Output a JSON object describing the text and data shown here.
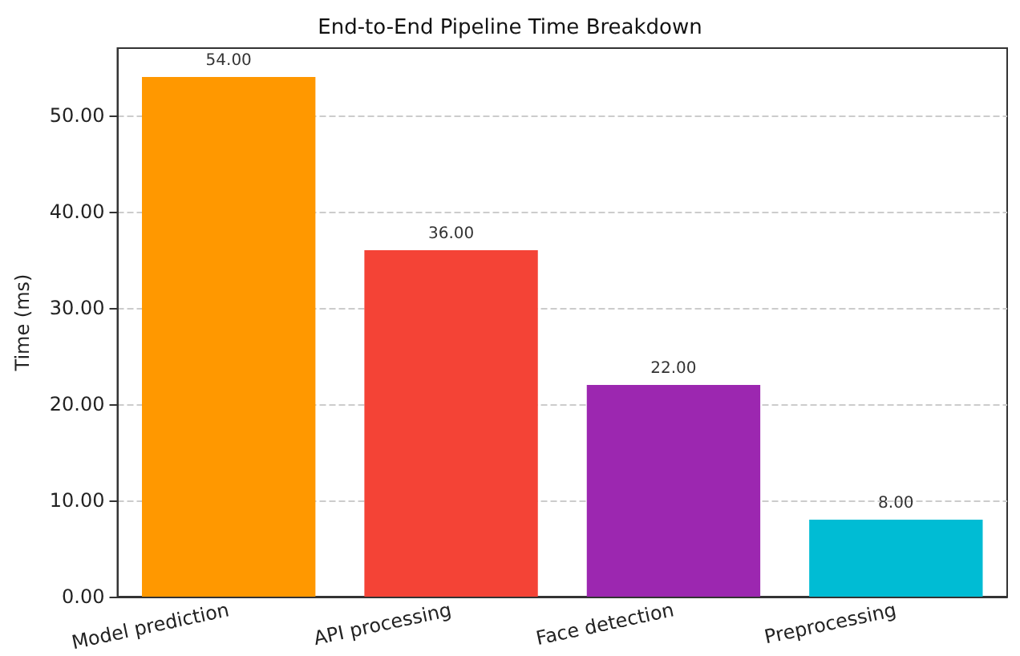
{
  "chart_data": {
    "type": "bar",
    "title": "End-to-End Pipeline Time Breakdown",
    "ylabel": "Time (ms)",
    "categories": [
      "Model prediction",
      "API processing",
      "Face detection",
      "Preprocessing"
    ],
    "values": [
      54,
      36,
      22,
      8
    ],
    "colors": [
      "#ff9800",
      "#f44336",
      "#9c27b0",
      "#00bcd4"
    ],
    "value_labels": [
      "54.00",
      "36.00",
      "22.00",
      "8.00"
    ],
    "ylim": [
      0,
      57
    ],
    "yticks": [
      {
        "value": 0,
        "label": "0.00"
      },
      {
        "value": 10,
        "label": "10.00"
      },
      {
        "value": 20,
        "label": "20.00"
      },
      {
        "value": 30,
        "label": "30.00"
      },
      {
        "value": 40,
        "label": "40.00"
      },
      {
        "value": 50,
        "label": "50.00"
      }
    ],
    "grid": "y"
  }
}
